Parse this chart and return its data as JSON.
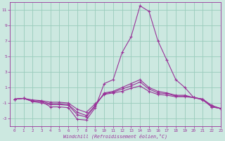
{
  "xlabel": "Windchill (Refroidissement éolien,°C)",
  "bg_color": "#cce8e0",
  "grid_color": "#99ccbb",
  "line_color": "#993399",
  "x_hours": [
    0,
    1,
    2,
    3,
    4,
    5,
    6,
    7,
    8,
    9,
    10,
    11,
    12,
    13,
    14,
    15,
    16,
    17,
    18,
    19,
    20,
    21,
    22,
    23
  ],
  "series": [
    [
      -0.5,
      -0.4,
      -0.8,
      -0.8,
      -1.5,
      -1.5,
      -1.6,
      -3.1,
      -3.2,
      -1.6,
      1.5,
      2.0,
      5.5,
      7.5,
      11.5,
      10.8,
      7.0,
      4.5,
      2.0,
      1.0,
      -0.3,
      -0.6,
      -1.5,
      -1.7
    ],
    [
      -0.5,
      -0.4,
      -0.8,
      -1.0,
      -1.2,
      -1.2,
      -1.3,
      -2.5,
      -2.8,
      -1.4,
      0.3,
      0.5,
      1.0,
      1.5,
      2.0,
      1.0,
      0.5,
      0.3,
      0.0,
      0.0,
      -0.3,
      -0.5,
      -1.5,
      -1.7
    ],
    [
      -0.5,
      -0.4,
      -0.7,
      -0.8,
      -1.1,
      -1.1,
      -1.2,
      -2.2,
      -2.6,
      -1.3,
      0.2,
      0.4,
      0.8,
      1.2,
      1.7,
      0.8,
      0.3,
      0.2,
      -0.1,
      -0.1,
      -0.3,
      -0.5,
      -1.4,
      -1.7
    ],
    [
      -0.5,
      -0.4,
      -0.6,
      -0.7,
      -0.9,
      -0.9,
      -1.0,
      -1.8,
      -2.2,
      -1.1,
      0.1,
      0.3,
      0.5,
      0.9,
      1.2,
      0.5,
      0.1,
      0.0,
      -0.2,
      -0.2,
      -0.3,
      -0.5,
      -1.3,
      -1.7
    ]
  ],
  "ylim": [
    -4,
    12
  ],
  "xlim": [
    -0.5,
    23
  ],
  "yticks": [
    -3,
    -1,
    1,
    3,
    5,
    7,
    9,
    11
  ],
  "xticks": [
    0,
    1,
    2,
    3,
    4,
    5,
    6,
    7,
    8,
    9,
    10,
    11,
    12,
    13,
    14,
    15,
    16,
    17,
    18,
    19,
    20,
    21,
    22,
    23
  ]
}
